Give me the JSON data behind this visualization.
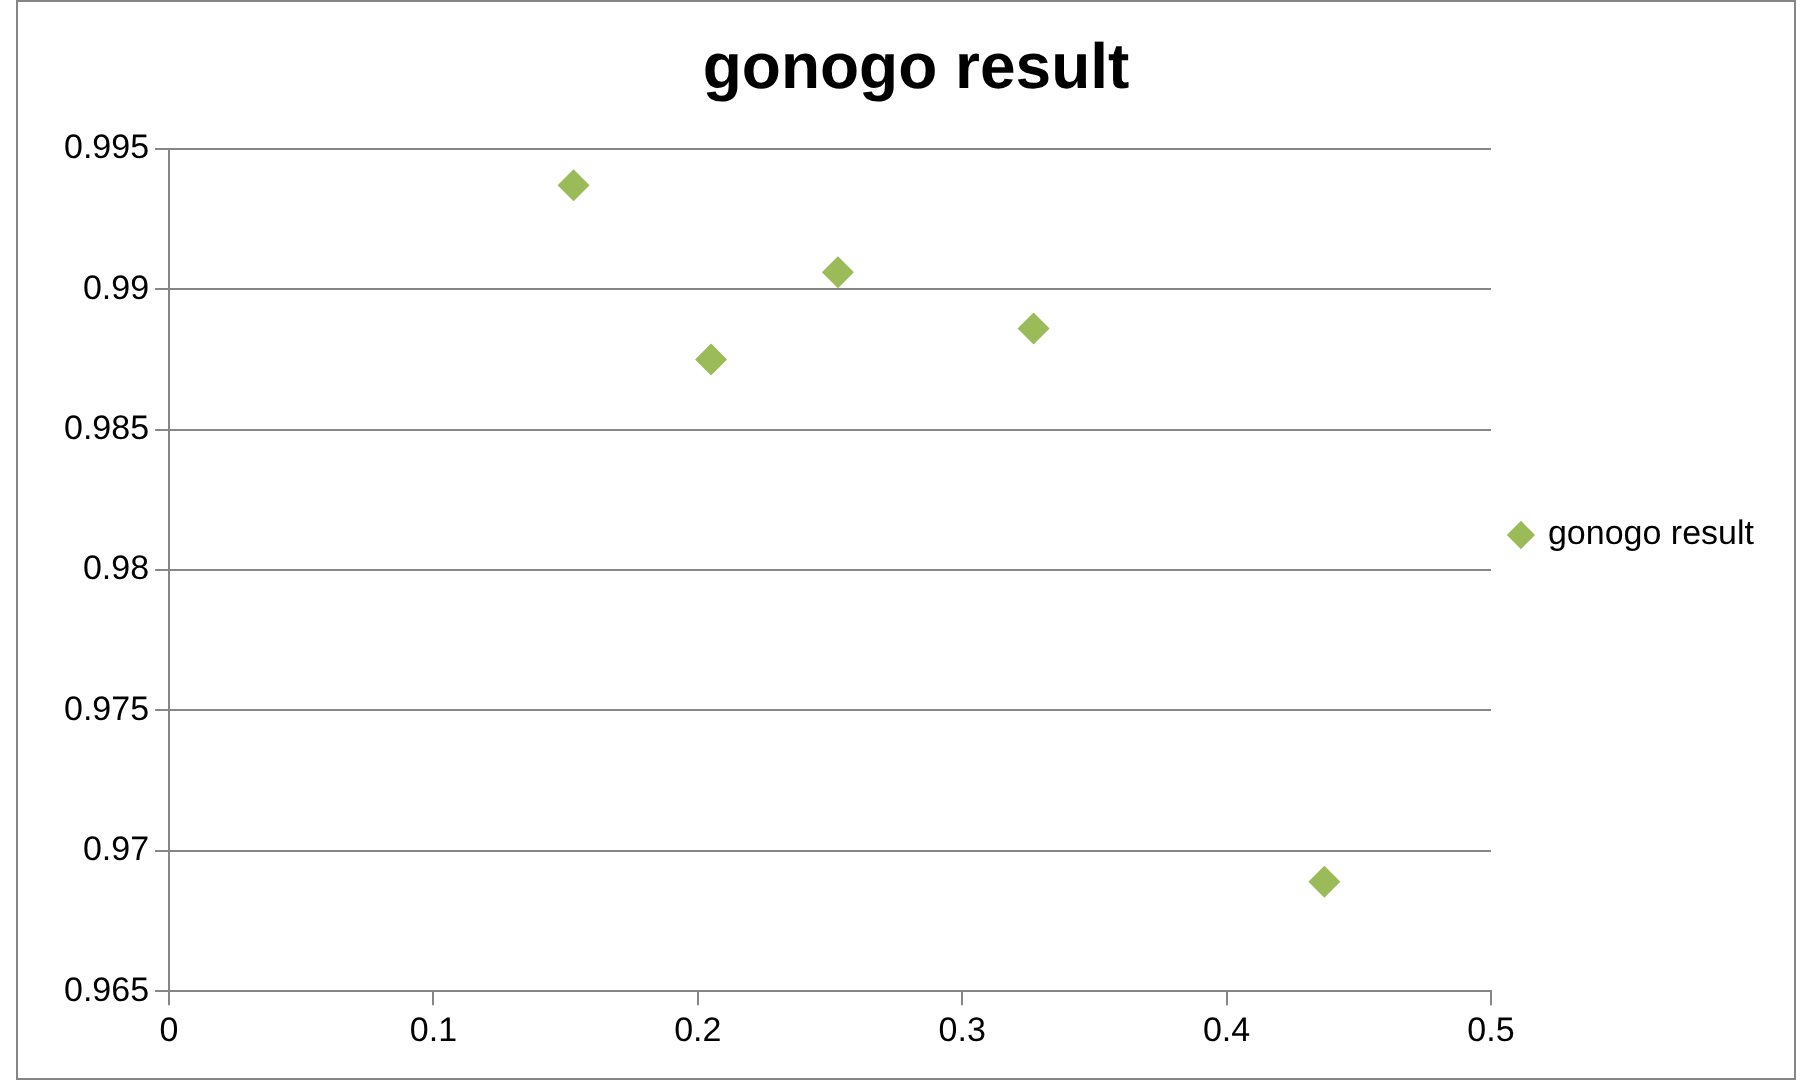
{
  "chart_data": {
    "type": "scatter",
    "title": "gonogo result",
    "series": [
      {
        "name": "gonogo result",
        "color": "#9bbb59",
        "x": [
          0.153,
          0.205,
          0.253,
          0.327,
          0.437
        ],
        "values": [
          0.9937,
          0.9875,
          0.9906,
          0.9886,
          0.9689
        ]
      }
    ],
    "xlim": [
      0,
      0.5
    ],
    "xticks": [
      0,
      0.1,
      0.2,
      0.3,
      0.4,
      0.5
    ],
    "ylim": [
      0.965,
      0.995
    ],
    "yticks": [
      0.965,
      0.97,
      0.975,
      0.98,
      0.985,
      0.99,
      0.995
    ],
    "grid": "y",
    "legend": "right",
    "marker": "diamond"
  }
}
